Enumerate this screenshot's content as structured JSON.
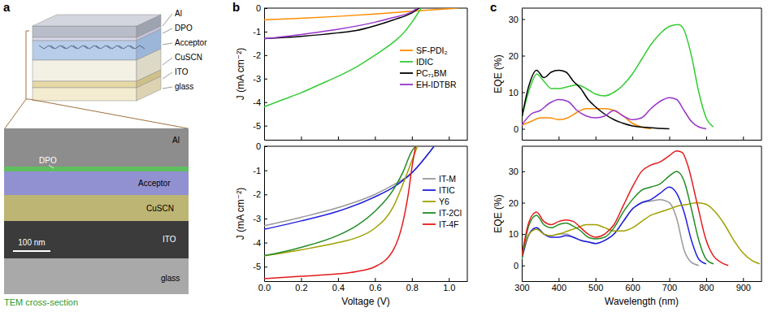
{
  "figure": {
    "panel_labels": [
      "a",
      "b",
      "c"
    ]
  },
  "schematic": {
    "layers": [
      "Al",
      "DPO",
      "Acceptor",
      "CuSCN",
      "ITO",
      "glass"
    ]
  },
  "tem": {
    "labels": [
      "Al",
      "DPO",
      "Acceptor",
      "CuSCN",
      "ITO",
      "glass"
    ],
    "scale_bar": "100 nm",
    "caption": "TEM cross-section"
  },
  "chart_data": [
    {
      "type": "line",
      "y_label": "J (mA cm⁻²)",
      "xlim": [
        0,
        1.1
      ],
      "ylim": [
        -5.6,
        0
      ],
      "xticks": [
        0,
        0.2,
        0.4,
        0.6,
        0.8,
        1
      ],
      "yticks": [
        0,
        -1,
        -2,
        -3,
        -4,
        -5
      ],
      "tick_labels": "y",
      "legend": "right",
      "series": [
        {
          "name": "SF-PDI₂",
          "color": "#ff8c00",
          "x": [
            0,
            0.2,
            0.4,
            0.6,
            0.8,
            0.95,
            1.05
          ],
          "values": [
            -0.5,
            -0.43,
            -0.35,
            -0.25,
            -0.13,
            -0.05,
            0
          ]
        },
        {
          "name": "IDIC",
          "color": "#33cc33",
          "x": [
            0,
            0.1,
            0.2,
            0.3,
            0.4,
            0.5,
            0.6,
            0.7,
            0.75,
            0.8,
            0.83,
            0.85
          ],
          "values": [
            -4.2,
            -3.9,
            -3.6,
            -3.25,
            -2.9,
            -2.5,
            -2.0,
            -1.45,
            -1.1,
            -0.6,
            -0.25,
            0
          ]
        },
        {
          "name": "PC₇₁BM",
          "color": "#000000",
          "x": [
            0,
            0.2,
            0.4,
            0.5,
            0.6,
            0.7,
            0.8,
            0.84
          ],
          "values": [
            -1.3,
            -1.2,
            -1.05,
            -0.95,
            -0.75,
            -0.5,
            -0.2,
            0
          ]
        },
        {
          "name": "EH-IDTBR",
          "color": "#9933cc",
          "x": [
            0,
            0.2,
            0.4,
            0.6,
            0.7,
            0.8,
            0.83
          ],
          "values": [
            -1.3,
            -1.12,
            -0.9,
            -0.6,
            -0.4,
            -0.15,
            0
          ]
        }
      ]
    },
    {
      "type": "line",
      "y_label": "J (mA cm⁻²)",
      "x_label": "Voltage (V)",
      "xlim": [
        0,
        1.1
      ],
      "ylim": [
        -5.6,
        0
      ],
      "xticks": [
        {
          "value": 0,
          "label": "0.0"
        },
        0.2,
        0.4,
        0.6,
        0.8,
        {
          "value": 1,
          "label": "1.0"
        }
      ],
      "yticks": [
        0,
        -1,
        -2,
        -3,
        -4,
        -5
      ],
      "legend": "right",
      "series": [
        {
          "name": "IT-M",
          "color": "#999999",
          "x": [
            0,
            0.2,
            0.4,
            0.6,
            0.7,
            0.8,
            0.9,
            0.92
          ],
          "values": [
            -3.3,
            -2.95,
            -2.55,
            -2.0,
            -1.6,
            -1.1,
            -0.2,
            0
          ]
        },
        {
          "name": "ITIC",
          "color": "#1f1fe0",
          "x": [
            0,
            0.2,
            0.4,
            0.6,
            0.7,
            0.8,
            0.9,
            0.92
          ],
          "values": [
            -3.45,
            -3.1,
            -2.7,
            -2.1,
            -1.7,
            -1.1,
            -0.2,
            0
          ]
        },
        {
          "name": "Y6",
          "color": "#a0a000",
          "x": [
            0,
            0.2,
            0.4,
            0.5,
            0.6,
            0.7,
            0.75,
            0.8,
            0.83
          ],
          "values": [
            -4.55,
            -4.3,
            -4.0,
            -3.8,
            -3.4,
            -2.5,
            -1.6,
            -0.6,
            0
          ]
        },
        {
          "name": "IT-2Cl",
          "color": "#228b22",
          "x": [
            0,
            0.2,
            0.4,
            0.5,
            0.6,
            0.7,
            0.75,
            0.8,
            0.82
          ],
          "values": [
            -4.55,
            -4.2,
            -3.7,
            -3.3,
            -2.7,
            -1.8,
            -1.1,
            -0.2,
            0
          ]
        },
        {
          "name": "IT-4F",
          "color": "#e41a1c",
          "x": [
            0,
            0.2,
            0.4,
            0.5,
            0.6,
            0.7,
            0.75,
            0.78,
            0.8,
            0.82
          ],
          "values": [
            -5.5,
            -5.4,
            -5.3,
            -5.2,
            -5.0,
            -4.3,
            -3.2,
            -2.0,
            -0.9,
            0
          ]
        }
      ]
    },
    {
      "type": "line",
      "y_label": "EQE (%)",
      "xlim": [
        300,
        950
      ],
      "ylim": [
        -3,
        33
      ],
      "xticks": [
        300,
        400,
        500,
        600,
        700,
        800,
        900
      ],
      "yticks": [
        0,
        10,
        20,
        30
      ],
      "tick_labels": "y",
      "series": [
        {
          "color": "#ff8c00",
          "x": [
            300,
            325,
            350,
            375,
            400,
            425,
            450,
            475,
            500,
            525,
            550,
            575,
            600,
            625,
            650
          ],
          "values": [
            1,
            2,
            3,
            3,
            2.5,
            3,
            4.5,
            5.5,
            5.5,
            5.5,
            5,
            3.5,
            1.5,
            0.5,
            0
          ]
        },
        {
          "color": "#33cc33",
          "x": [
            300,
            325,
            340,
            360,
            380,
            400,
            425,
            450,
            475,
            500,
            525,
            550,
            575,
            600,
            625,
            650,
            675,
            700,
            725,
            740,
            760,
            780,
            800,
            820
          ],
          "values": [
            3,
            12,
            15,
            13,
            11,
            11,
            11.5,
            12,
            11,
            9.5,
            9,
            10,
            12,
            15,
            19,
            23,
            26,
            28,
            28.5,
            27,
            20,
            10,
            3,
            0.5
          ]
        },
        {
          "color": "#000000",
          "x": [
            300,
            320,
            340,
            360,
            380,
            400,
            420,
            440,
            460,
            480,
            500,
            525,
            550,
            575,
            600,
            650,
            700
          ],
          "values": [
            3,
            12,
            16,
            14,
            15.5,
            16,
            15.5,
            13,
            11,
            8,
            6,
            4,
            2.5,
            1.5,
            0.8,
            0.3,
            0
          ]
        },
        {
          "color": "#9933cc",
          "x": [
            300,
            325,
            350,
            375,
            400,
            425,
            450,
            475,
            500,
            525,
            550,
            575,
            600,
            625,
            650,
            675,
            700,
            720,
            740,
            760,
            780,
            800
          ],
          "values": [
            1,
            4,
            5,
            7,
            8,
            7.5,
            5,
            3.5,
            3,
            3.5,
            5,
            3.5,
            2.5,
            3,
            5.5,
            7.5,
            8.5,
            8,
            5,
            2,
            0.5,
            0
          ]
        }
      ]
    },
    {
      "type": "line",
      "y_label": "EQE (%)",
      "x_label": "Wavelength (nm)",
      "xlim": [
        300,
        950
      ],
      "ylim": [
        -5,
        38
      ],
      "xticks": [
        300,
        400,
        500,
        600,
        700,
        800,
        900
      ],
      "yticks": [
        0,
        10,
        20,
        30
      ],
      "series": [
        {
          "color": "#999999",
          "x": [
            300,
            320,
            340,
            360,
            380,
            400,
            420,
            440,
            460,
            480,
            500,
            525,
            550,
            575,
            600,
            625,
            650,
            675,
            700,
            720,
            740,
            760,
            780
          ],
          "values": [
            2,
            10,
            12,
            10,
            9.5,
            10,
            10,
            9,
            8,
            7.5,
            7,
            8,
            10,
            14,
            18,
            20,
            20.5,
            21,
            20,
            15,
            5,
            1,
            0
          ]
        },
        {
          "color": "#1f1fe0",
          "x": [
            300,
            320,
            340,
            360,
            380,
            400,
            420,
            440,
            460,
            480,
            500,
            525,
            550,
            575,
            600,
            625,
            650,
            675,
            700,
            720,
            740,
            760,
            780,
            800
          ],
          "values": [
            2,
            10,
            12,
            10,
            9,
            9,
            9.5,
            9,
            8,
            7.5,
            7,
            8,
            10,
            14,
            18,
            20,
            21,
            23,
            25,
            23,
            17,
            8,
            2,
            0.5
          ]
        },
        {
          "color": "#a0a000",
          "x": [
            300,
            320,
            340,
            360,
            380,
            400,
            425,
            450,
            475,
            500,
            525,
            550,
            575,
            600,
            625,
            650,
            675,
            700,
            725,
            750,
            775,
            800,
            825,
            850,
            875,
            900,
            925,
            945
          ],
          "values": [
            3,
            10,
            11.5,
            10,
            9.5,
            10,
            11,
            12,
            13,
            13,
            12,
            11,
            11,
            12,
            14,
            16,
            17,
            18,
            19,
            19.5,
            20,
            19.5,
            17,
            13,
            8,
            4,
            1.5,
            0.5
          ]
        },
        {
          "color": "#228b22",
          "x": [
            300,
            320,
            340,
            360,
            380,
            400,
            420,
            440,
            460,
            480,
            500,
            525,
            550,
            575,
            600,
            625,
            650,
            675,
            700,
            720,
            740,
            760,
            780,
            800,
            820
          ],
          "values": [
            2,
            13,
            16,
            13,
            12,
            13,
            13.5,
            12.5,
            11,
            9,
            8.5,
            9,
            12,
            17,
            21,
            24,
            25,
            26,
            28.5,
            30,
            27,
            18,
            8,
            2,
            0.5
          ]
        },
        {
          "color": "#e41a1c",
          "x": [
            300,
            320,
            340,
            360,
            380,
            400,
            420,
            440,
            460,
            480,
            500,
            525,
            550,
            575,
            600,
            625,
            650,
            675,
            700,
            720,
            735,
            750,
            775,
            800,
            820,
            840,
            860
          ],
          "values": [
            3,
            14,
            17,
            14,
            13,
            14,
            14.5,
            14,
            12,
            10,
            9,
            10,
            13,
            19,
            25,
            30,
            32,
            33,
            35,
            36.5,
            36,
            32,
            20,
            8,
            3,
            1,
            0
          ]
        }
      ]
    }
  ]
}
